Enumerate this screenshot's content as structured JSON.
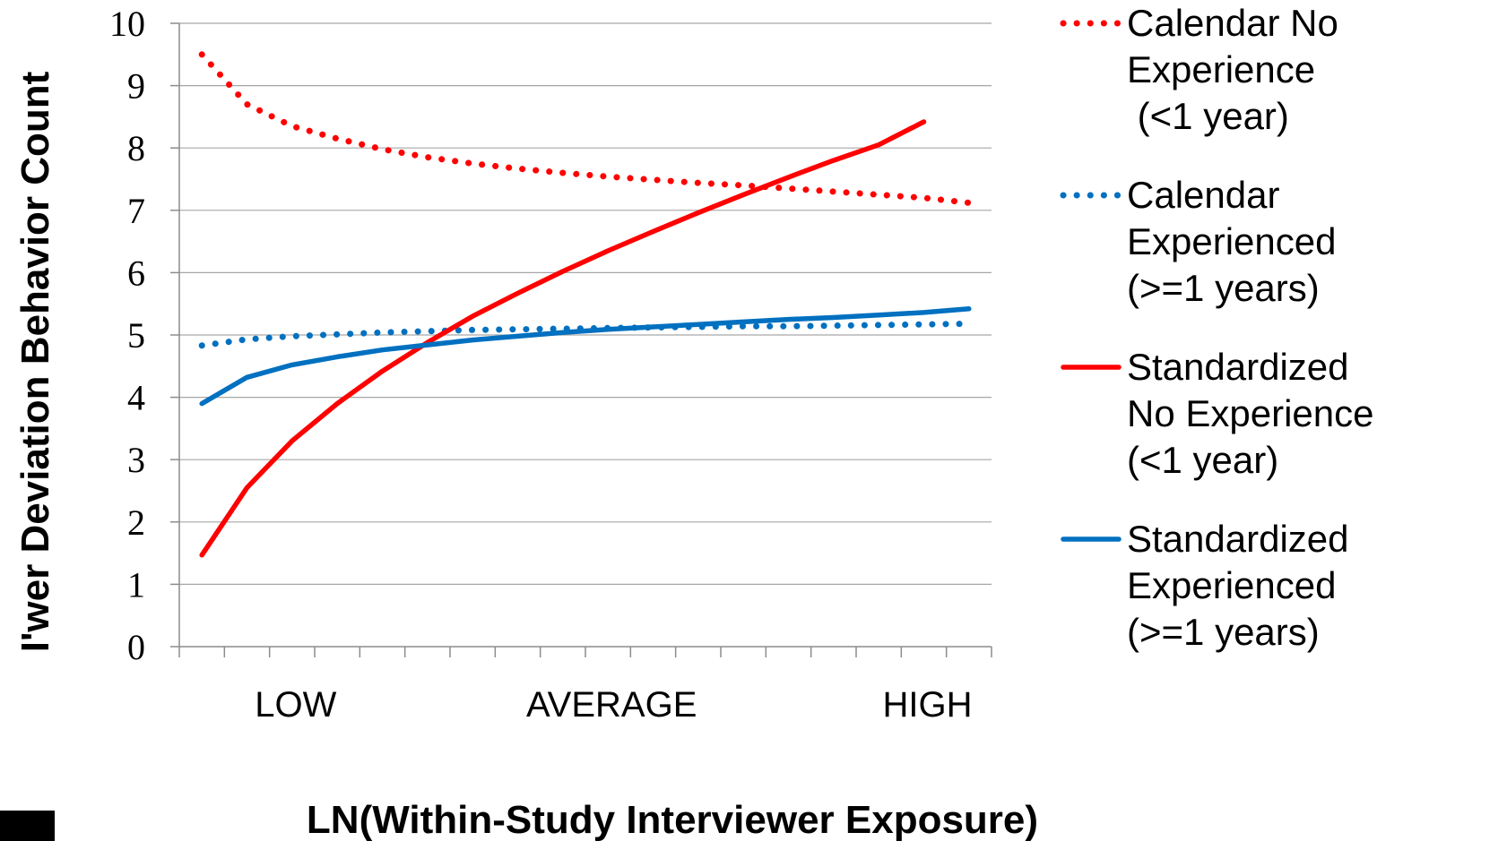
{
  "chart_data": {
    "type": "line",
    "title": "",
    "xlabel": "LN(Within-Study Interviewer Exposure)",
    "ylabel": "I'wer Deviation Behavior Count",
    "ylim": [
      0,
      10
    ],
    "yticks": [
      "0",
      "1",
      "2",
      "3",
      "4",
      "5",
      "6",
      "7",
      "8",
      "9",
      "10"
    ],
    "x_tick_labels": [
      {
        "label": "LOW",
        "x": 3
      },
      {
        "label": "AVERAGE",
        "x": 10
      },
      {
        "label": "HIGH",
        "x": 17
      }
    ],
    "xlim": [
      0.5,
      18.5
    ],
    "grid": true,
    "legend_position": "right",
    "x": [
      1,
      2,
      3,
      4,
      5,
      6,
      7,
      8,
      9,
      10,
      11,
      12,
      13,
      14,
      15,
      16,
      17,
      18
    ],
    "series": [
      {
        "name": "Calendar No Experience (<1 year)",
        "legend_lines": [
          "Calendar No",
          "Experience",
          " (<1 year)"
        ],
        "color": "#ff0000",
        "style": "dotted",
        "x": [
          1,
          2,
          3,
          4,
          5,
          6,
          7,
          8,
          9,
          10,
          11,
          12,
          13,
          14,
          15,
          16,
          17,
          18
        ],
        "values": [
          9.5,
          8.7,
          8.35,
          8.15,
          7.98,
          7.85,
          7.75,
          7.67,
          7.6,
          7.54,
          7.49,
          7.44,
          7.4,
          7.35,
          7.3,
          7.25,
          7.2,
          7.12
        ]
      },
      {
        "name": "Calendar Experienced (>=1 years)",
        "legend_lines": [
          "Calendar",
          "Experienced",
          "(>=1 years)"
        ],
        "color": "#0070c0",
        "style": "dotted",
        "x": [
          1,
          2,
          3,
          4,
          5,
          6,
          7,
          8,
          9,
          10,
          11,
          12,
          13,
          14,
          15,
          16,
          17,
          18
        ],
        "values": [
          4.83,
          4.93,
          4.98,
          5.01,
          5.04,
          5.06,
          5.08,
          5.09,
          5.1,
          5.11,
          5.12,
          5.13,
          5.14,
          5.14,
          5.15,
          5.16,
          5.17,
          5.18
        ]
      },
      {
        "name": "Standardized No Experience (<1 year)",
        "legend_lines": [
          "Standardized",
          "No Experience",
          "(<1 year)"
        ],
        "color": "#ff0000",
        "style": "solid",
        "x": [
          1,
          2,
          3,
          4,
          5,
          6,
          7,
          8,
          9,
          10,
          11,
          12,
          13,
          14,
          15,
          16,
          17
        ],
        "values": [
          1.47,
          2.55,
          3.3,
          3.9,
          4.42,
          4.88,
          5.3,
          5.67,
          6.02,
          6.35,
          6.66,
          6.96,
          7.25,
          7.53,
          7.8,
          8.05,
          8.42
        ]
      },
      {
        "name": "Standardized Experienced (>=1 years)",
        "legend_lines": [
          "Standardized",
          "Experienced",
          "(>=1 years)"
        ],
        "color": "#0070c0",
        "style": "solid",
        "x": [
          1,
          2,
          3,
          4,
          5,
          6,
          7,
          8,
          9,
          10,
          11,
          12,
          13,
          14,
          15,
          16,
          17,
          18
        ],
        "values": [
          3.9,
          4.32,
          4.52,
          4.65,
          4.76,
          4.84,
          4.92,
          4.98,
          5.04,
          5.09,
          5.13,
          5.17,
          5.21,
          5.25,
          5.28,
          5.32,
          5.36,
          5.42
        ]
      }
    ]
  }
}
